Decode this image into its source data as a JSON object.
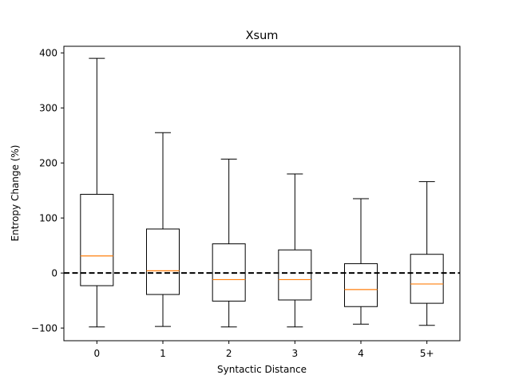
{
  "chart_data": {
    "type": "box",
    "title": "Xsum",
    "xlabel": "Syntactic Distance",
    "ylabel": "Entropy Change (%)",
    "categories": [
      "0",
      "1",
      "2",
      "3",
      "4",
      "5+"
    ],
    "boxes": [
      {
        "category": "0",
        "whisker_low": -98,
        "q1": -23,
        "median": 31,
        "q3": 143,
        "whisker_high": 390
      },
      {
        "category": "1",
        "whisker_low": -97,
        "q1": -39,
        "median": 4,
        "q3": 80,
        "whisker_high": 255
      },
      {
        "category": "2",
        "whisker_low": -98,
        "q1": -51,
        "median": -12,
        "q3": 53,
        "whisker_high": 207
      },
      {
        "category": "3",
        "whisker_low": -98,
        "q1": -49,
        "median": -12,
        "q3": 42,
        "whisker_high": 180
      },
      {
        "category": "4",
        "whisker_low": -93,
        "q1": -61,
        "median": -30,
        "q3": 17,
        "whisker_high": 135
      },
      {
        "category": "5+",
        "whisker_low": -95,
        "q1": -55,
        "median": -20,
        "q3": 34,
        "whisker_high": 166
      }
    ],
    "reference_line": {
      "y": 0,
      "style": "dashed",
      "color": "#000000"
    },
    "ylim": [
      -123,
      412
    ],
    "yticks": [
      -100,
      0,
      100,
      200,
      300,
      400
    ],
    "ytick_labels": [
      "−100",
      "0",
      "100",
      "200",
      "300",
      "400"
    ],
    "grid": false,
    "legend": "none",
    "colors": {
      "box": "#000000",
      "median": "#ff7f0e",
      "background": "#ffffff"
    }
  }
}
